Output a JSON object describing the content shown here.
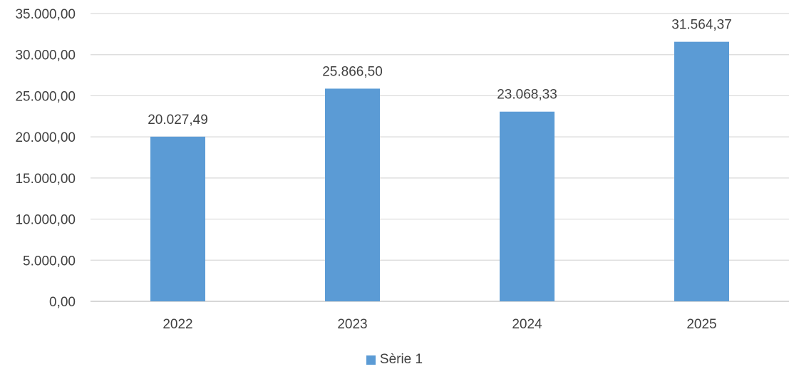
{
  "chart_data": {
    "type": "bar",
    "categories": [
      "2022",
      "2023",
      "2024",
      "2025"
    ],
    "series": [
      {
        "name": "Sèrie 1",
        "values": [
          20027.49,
          25866.5,
          23068.33,
          31564.37
        ],
        "color": "#5B9BD5"
      }
    ],
    "data_labels": [
      "20.027,49",
      "25.866,50",
      "23.068,33",
      "31.564,37"
    ],
    "y_ticks": [
      0,
      5000,
      10000,
      15000,
      20000,
      25000,
      30000,
      35000
    ],
    "y_tick_labels": [
      "0,00",
      "5.000,00",
      "10.000,00",
      "15.000,00",
      "20.000,00",
      "25.000,00",
      "30.000,00",
      "35.000,00"
    ],
    "ylim": [
      0,
      35000
    ],
    "grid": true,
    "legend_position": "bottom",
    "title": "",
    "xlabel": "",
    "ylabel": ""
  },
  "colors": {
    "bar": "#5B9BD5",
    "grid": "#D9D9D9",
    "text": "#404040"
  }
}
